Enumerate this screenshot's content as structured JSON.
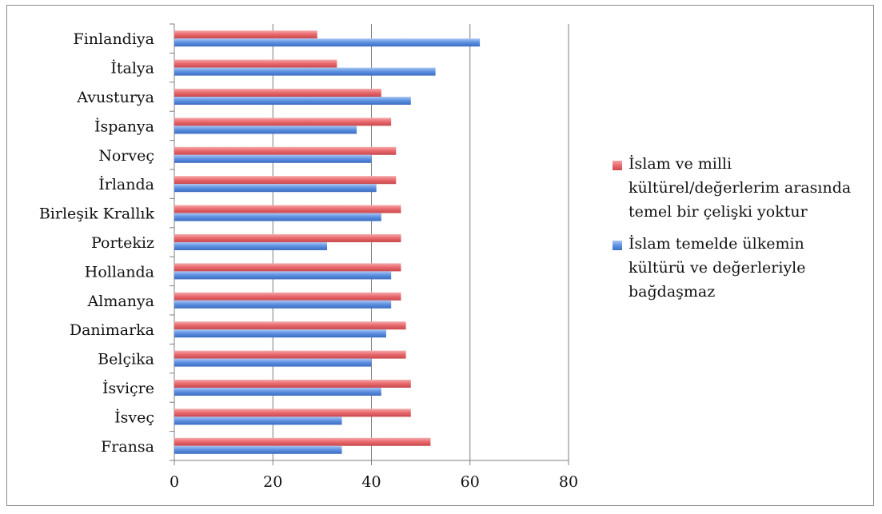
{
  "chart_data": {
    "type": "bar",
    "orientation": "horizontal",
    "categories": [
      "Finlandiya",
      "İtalya",
      "Avusturya",
      "İspanya",
      "Norveç",
      "İrlanda",
      "Birleşik Krallık",
      "Portekiz",
      "Hollanda",
      "Almanya",
      "Danimarka",
      "Belçika",
      "İsviçre",
      "İsveç",
      "Fransa"
    ],
    "series": [
      {
        "name": "İslam ve milli kültürel/değerlerim arasında temel bir çelişki yoktur",
        "color": "#e8676b",
        "values": [
          29,
          33,
          42,
          44,
          45,
          45,
          46,
          46,
          46,
          46,
          47,
          47,
          48,
          48,
          52
        ]
      },
      {
        "name": "İslam temelde ülkemin kültürü ve değerleriyle bağdaşmaz",
        "color": "#5b8fe0",
        "values": [
          62,
          53,
          48,
          37,
          40,
          41,
          42,
          31,
          44,
          44,
          43,
          40,
          42,
          34,
          34
        ]
      }
    ],
    "xlim": [
      0,
      80
    ],
    "xticks": [
      "0",
      "20",
      "40",
      "60",
      "80"
    ],
    "grid": true,
    "legend_position": "right"
  }
}
